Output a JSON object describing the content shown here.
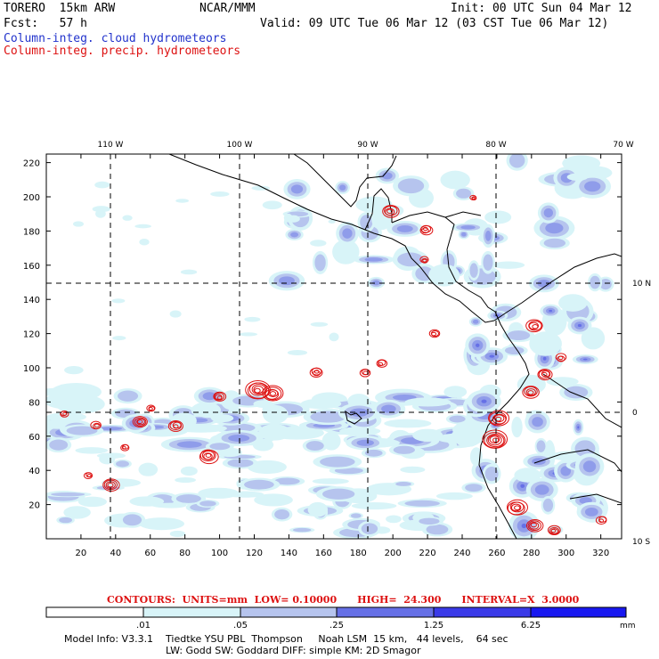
{
  "header": {
    "model": "TORERO  15km ARW",
    "org": "NCAR/MMM",
    "init": "Init: 00 UTC Sun 04 Mar 12",
    "fcst": "Fcst:   57 h",
    "valid": "Valid: 09 UTC Tue 06 Mar 12 (03 CST Tue 06 Mar 12)",
    "line_cloud": "Column-integ. cloud hydrometeors",
    "line_precip": "Column-integ. precip. hydrometeors"
  },
  "colors": {
    "cloud_text": "#2233cc",
    "precip_text": "#dd1111",
    "shade1": "#d8f4f8",
    "shade2": "#b6c4ee",
    "shade3": "#8f9cea",
    "shade4": "#6670e6",
    "shade5": "#3a3ae8",
    "shade6": "#1818f0",
    "contour": "#dd1111"
  },
  "map": {
    "lon_labels": [
      "110 W",
      "100 W",
      "90 W",
      "80 W",
      "70 W"
    ],
    "lat_labels": [
      "10 N",
      "0",
      "10 S"
    ],
    "x_ticks": [
      "20",
      "40",
      "60",
      "80",
      "100",
      "120",
      "140",
      "160",
      "180",
      "200",
      "220",
      "240",
      "260",
      "280",
      "300",
      "320"
    ],
    "y_ticks": [
      "20",
      "40",
      "60",
      "80",
      "100",
      "120",
      "140",
      "160",
      "180",
      "200",
      "220"
    ],
    "x_range": [
      0,
      332
    ],
    "y_range": [
      0,
      225
    ]
  },
  "legend": {
    "contours": "CONTOURS:  UNITS=mm  LOW= 0.10000      HIGH=  24.300      INTERVAL=X  3.0000",
    "levels": [
      ".01",
      ".05",
      ".25",
      "1.25",
      "6.25"
    ],
    "unit": "mm"
  },
  "footer": {
    "line1": "Model Info: V3.3.1    Tiedtke YSU PBL  Thompson     Noah LSM  15 km,   44 levels,    64 sec",
    "line2": "LW: Godd SW: Goddard DIFF: simple KM: 2D Smagor"
  }
}
